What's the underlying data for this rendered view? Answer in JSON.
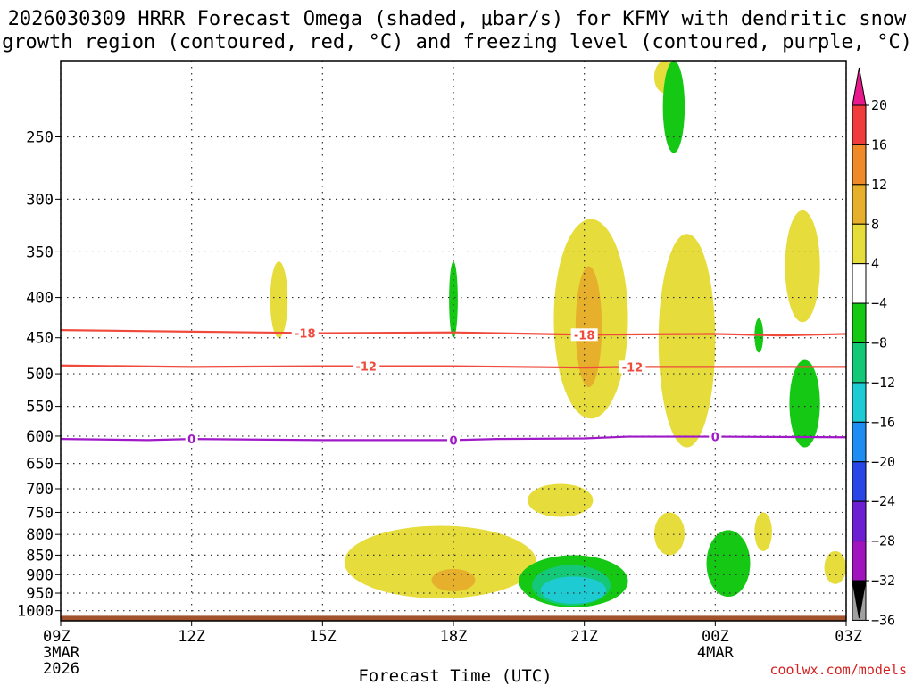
{
  "chart_data": {
    "type": "contour-timeheight",
    "title_lines": [
      "2026030309 HRRR Forecast Omega (shaded, μbar/s) for KFMY with dendritic snow",
      "growth region (contoured, red, °C) and freezing level (contoured, purple, °C)"
    ],
    "xlabel": "Forecast Time (UTC)",
    "credit": "coolwx.com/models",
    "x_ticks": [
      {
        "hour": 0,
        "label": "09Z",
        "sub": [
          "3MAR",
          "2026"
        ]
      },
      {
        "hour": 3,
        "label": "12Z",
        "sub": []
      },
      {
        "hour": 6,
        "label": "15Z",
        "sub": []
      },
      {
        "hour": 9,
        "label": "18Z",
        "sub": []
      },
      {
        "hour": 12,
        "label": "21Z",
        "sub": []
      },
      {
        "hour": 15,
        "label": "00Z",
        "sub": [
          "4MAR"
        ]
      },
      {
        "hour": 18,
        "label": "03Z",
        "sub": []
      }
    ],
    "x_range_hours": [
      0,
      18
    ],
    "y_axis": {
      "type": "log-pressure",
      "top_hpa": 200,
      "bottom_hpa": 1030,
      "units": "hPa"
    },
    "y_ticks": [
      250,
      300,
      350,
      400,
      450,
      500,
      550,
      600,
      650,
      700,
      750,
      800,
      850,
      900,
      950,
      1000
    ],
    "colorbar": {
      "levels": [
        "20",
        "16",
        "12",
        "8",
        "4",
        "−4",
        "−8",
        "−12",
        "−16",
        "−20",
        "−24",
        "−28",
        "−32",
        "−36"
      ],
      "bins": [
        {
          "range": ">20",
          "color": "#e8198c"
        },
        {
          "range": "16 to 20",
          "color": "#f03c3c"
        },
        {
          "range": "12 to 16",
          "color": "#ee8a28"
        },
        {
          "range": "8 to 12",
          "color": "#e6b02c"
        },
        {
          "range": "4 to 8",
          "color": "#e6dc3c"
        },
        {
          "range": "-4 to 4",
          "color": "#ffffff"
        },
        {
          "range": "-8 to -4",
          "color": "#14c814"
        },
        {
          "range": "-12 to -8",
          "color": "#14c878"
        },
        {
          "range": "-16 to -12",
          "color": "#1ecbd2"
        },
        {
          "range": "-20 to -16",
          "color": "#1e8cf0"
        },
        {
          "range": "-24 to -20",
          "color": "#2846e6"
        },
        {
          "range": "-28 to -24",
          "color": "#6e1ed2"
        },
        {
          "range": "-32 to -28",
          "color": "#a014be"
        },
        {
          "range": "-36 to -32",
          "color": "#a0a0a0"
        },
        {
          "range": "<-36",
          "color": "#000000"
        }
      ]
    },
    "contours": [
      {
        "name": "-18C isotherm",
        "label": "-18",
        "color": "#f04a3c",
        "points": [
          [
            0,
            440
          ],
          [
            3,
            442
          ],
          [
            6,
            444
          ],
          [
            9,
            443
          ],
          [
            12,
            446
          ],
          [
            15,
            445
          ],
          [
            16.5,
            447
          ],
          [
            18,
            445
          ]
        ],
        "label_hours": [
          5.6,
          12.0
        ]
      },
      {
        "name": "-12C isotherm",
        "label": "-12",
        "color": "#f04a3c",
        "points": [
          [
            0,
            488
          ],
          [
            3,
            490
          ],
          [
            6,
            489
          ],
          [
            9,
            489
          ],
          [
            12,
            491
          ],
          [
            13,
            490
          ],
          [
            15,
            490
          ],
          [
            18,
            490
          ]
        ],
        "label_hours": [
          7.0,
          13.1
        ]
      },
      {
        "name": "freezing level",
        "label": "0",
        "color": "#a019c8",
        "points": [
          [
            0,
            605
          ],
          [
            2,
            607
          ],
          [
            3,
            605
          ],
          [
            6,
            607
          ],
          [
            9,
            607
          ],
          [
            10,
            605
          ],
          [
            12,
            604
          ],
          [
            13,
            601
          ],
          [
            15,
            601
          ],
          [
            18,
            602
          ]
        ],
        "label_hours": [
          3.0,
          9.0,
          15.0
        ]
      }
    ],
    "omega_regions": [
      {
        "value_bin": "4 to 8",
        "color": "#e6dc3c",
        "time_hours": [
          13.6,
          14.1
        ],
        "pressure_hpa": [
          200,
          220
        ]
      },
      {
        "value_bin": "-8 to -4",
        "color": "#14c814",
        "time_hours": [
          13.8,
          14.3
        ],
        "pressure_hpa": [
          200,
          262
        ]
      },
      {
        "value_bin": "4 to 8",
        "color": "#e6dc3c",
        "time_hours": [
          11.3,
          13.0
        ],
        "pressure_hpa": [
          318,
          570
        ]
      },
      {
        "value_bin": "4 to 8",
        "color": "#e6dc3c",
        "time_hours": [
          13.7,
          15.0
        ],
        "pressure_hpa": [
          332,
          620
        ]
      },
      {
        "value_bin": "8 to 12",
        "color": "#e6b02c",
        "time_hours": [
          11.8,
          12.4
        ],
        "pressure_hpa": [
          365,
          520
        ]
      },
      {
        "value_bin": "4 to 8",
        "color": "#e6dc3c",
        "time_hours": [
          10.7,
          12.2
        ],
        "pressure_hpa": [
          690,
          760
        ]
      },
      {
        "value_bin": "4 to 8",
        "color": "#e6dc3c",
        "time_hours": [
          4.8,
          5.2
        ],
        "pressure_hpa": [
          360,
          450
        ]
      },
      {
        "value_bin": "-8 to -4",
        "color": "#14c814",
        "time_hours": [
          8.9,
          9.1
        ],
        "pressure_hpa": [
          360,
          450
        ]
      },
      {
        "value_bin": "4 to 8",
        "color": "#e6dc3c",
        "time_hours": [
          16.6,
          17.4
        ],
        "pressure_hpa": [
          310,
          430
        ]
      },
      {
        "value_bin": "-8 to -4",
        "color": "#14c814",
        "time_hours": [
          16.7,
          17.4
        ],
        "pressure_hpa": [
          480,
          620
        ]
      },
      {
        "value_bin": "-8 to -4",
        "color": "#14c814",
        "time_hours": [
          15.9,
          16.1
        ],
        "pressure_hpa": [
          425,
          470
        ]
      },
      {
        "value_bin": "4 to 8",
        "color": "#e6dc3c",
        "time_hours": [
          6.5,
          10.9
        ],
        "pressure_hpa": [
          780,
          965
        ]
      },
      {
        "value_bin": "8 to 12",
        "color": "#e6b02c",
        "time_hours": [
          8.5,
          9.5
        ],
        "pressure_hpa": [
          885,
          945
        ]
      },
      {
        "value_bin": "-8 to -4",
        "color": "#14c814",
        "time_hours": [
          10.5,
          13.0
        ],
        "pressure_hpa": [
          850,
          990
        ]
      },
      {
        "value_bin": "-12 to -8",
        "color": "#14c878",
        "time_hours": [
          10.8,
          12.6
        ],
        "pressure_hpa": [
          875,
          985
        ]
      },
      {
        "value_bin": "-16 to -12",
        "color": "#1ecbd2",
        "time_hours": [
          11.0,
          12.5
        ],
        "pressure_hpa": [
          905,
          980
        ]
      },
      {
        "value_bin": "-8 to -4",
        "color": "#14c814",
        "time_hours": [
          14.8,
          15.8
        ],
        "pressure_hpa": [
          790,
          960
        ]
      },
      {
        "value_bin": "4 to 8",
        "color": "#e6dc3c",
        "time_hours": [
          13.6,
          14.3
        ],
        "pressure_hpa": [
          750,
          850
        ]
      },
      {
        "value_bin": "4 to 8",
        "color": "#e6dc3c",
        "time_hours": [
          15.9,
          16.3
        ],
        "pressure_hpa": [
          750,
          840
        ]
      },
      {
        "value_bin": "4 to 8",
        "color": "#e6dc3c",
        "time_hours": [
          17.5,
          18.0
        ],
        "pressure_hpa": [
          840,
          925
        ]
      }
    ],
    "terrain": {
      "color": "#a0522d",
      "pressure_hpa": [
        1015,
        1030
      ]
    }
  }
}
